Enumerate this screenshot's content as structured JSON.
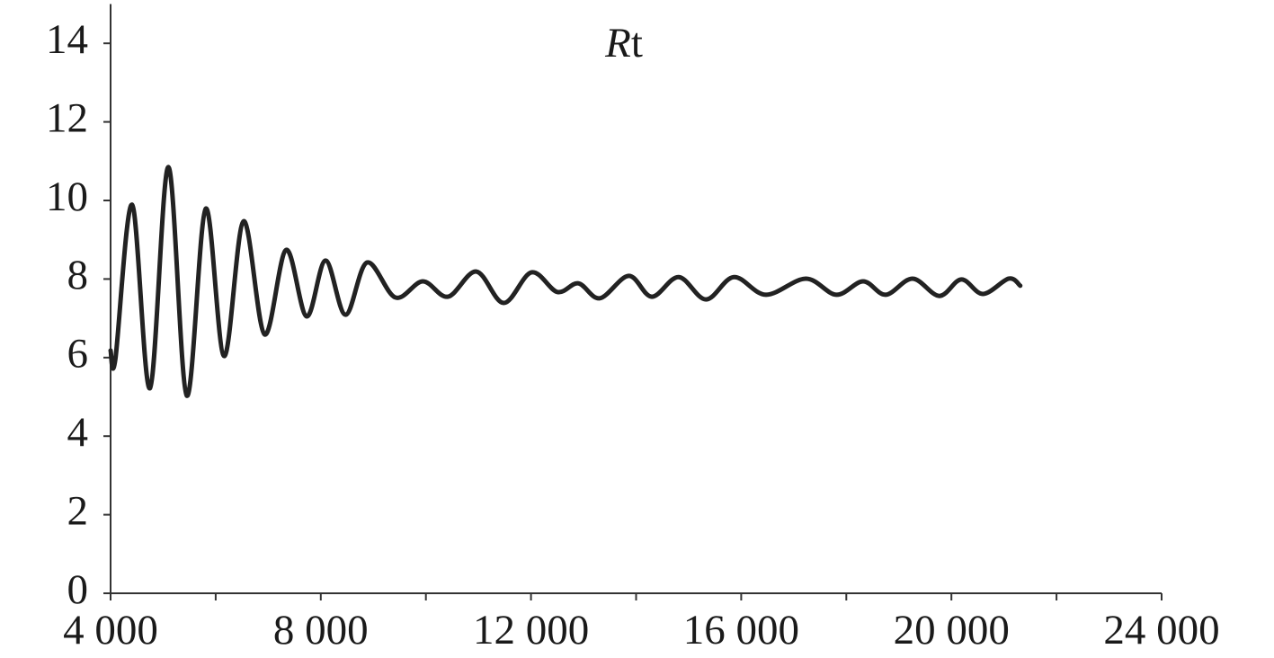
{
  "chart_data": {
    "type": "line",
    "title": "Rt",
    "x": [
      4000,
      4090,
      4410,
      4750,
      5100,
      5450,
      5810,
      6160,
      6530,
      6930,
      7340,
      7730,
      8090,
      8470,
      8880,
      9420,
      9940,
      10420,
      10960,
      11480,
      12010,
      12500,
      12900,
      13310,
      13860,
      14300,
      14810,
      15330,
      15860,
      16470,
      17230,
      17810,
      18320,
      18750,
      19260,
      19770,
      20190,
      20600,
      21090,
      21310
    ],
    "values": [
      6.18,
      5.95,
      9.89,
      5.22,
      10.85,
      5.03,
      9.79,
      6.04,
      9.47,
      6.59,
      8.74,
      7.05,
      8.47,
      7.09,
      8.42,
      7.53,
      7.94,
      7.55,
      8.19,
      7.39,
      8.17,
      7.67,
      7.89,
      7.51,
      8.08,
      7.55,
      8.05,
      7.48,
      8.05,
      7.6,
      8.01,
      7.6,
      7.94,
      7.6,
      8.01,
      7.57,
      7.99,
      7.62,
      8.01,
      7.83
    ],
    "color": "#222222",
    "xlim": [
      4000,
      24000
    ],
    "xticks": [
      {
        "value": 4000,
        "label": "4 000"
      },
      {
        "value": 8000,
        "label": "8 000"
      },
      {
        "value": 12000,
        "label": "12 000"
      },
      {
        "value": 16000,
        "label": "16 000"
      },
      {
        "value": 20000,
        "label": "20 000"
      },
      {
        "value": 24000,
        "label": "24 000"
      }
    ],
    "xminorticks": [
      6000,
      10000,
      14000,
      18000,
      22000
    ],
    "ylim": [
      0,
      15
    ],
    "yticks": [
      0,
      2,
      4,
      6,
      8,
      10,
      12,
      14
    ],
    "grid": false
  }
}
